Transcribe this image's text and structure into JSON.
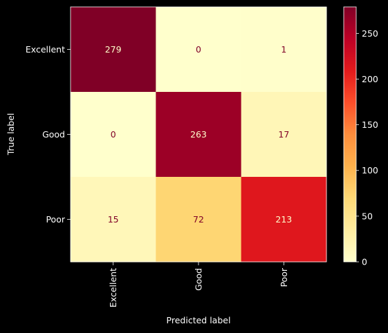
{
  "chart_data": {
    "type": "heatmap",
    "title": "",
    "xlabel": "Predicted label",
    "ylabel": "True label",
    "x_categories": [
      "Excellent",
      "Good",
      "Poor"
    ],
    "y_categories": [
      "Excellent",
      "Good",
      "Poor"
    ],
    "values": [
      [
        279,
        0,
        1
      ],
      [
        0,
        263,
        17
      ],
      [
        15,
        72,
        213
      ]
    ],
    "colormap": "YlOrRd",
    "colorbar": {
      "min": 0,
      "max": 279,
      "ticks": [
        0,
        50,
        100,
        150,
        200,
        250
      ]
    },
    "grid": false,
    "background": "#000000",
    "text_color": "#ffffff"
  }
}
